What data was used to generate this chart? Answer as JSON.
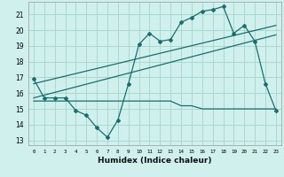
{
  "xlabel": "Humidex (Indice chaleur)",
  "bg_color": "#cff0ec",
  "grid_color": "#aad8d0",
  "line_color": "#1a6e6e",
  "x_ticks": [
    0,
    1,
    2,
    3,
    4,
    5,
    6,
    7,
    8,
    9,
    10,
    11,
    12,
    13,
    14,
    15,
    16,
    17,
    18,
    19,
    20,
    21,
    22,
    23
  ],
  "y_ticks": [
    13,
    14,
    15,
    16,
    17,
    18,
    19,
    20,
    21
  ],
  "xlim": [
    -0.5,
    23.5
  ],
  "ylim": [
    12.7,
    21.8
  ],
  "line1_x": [
    0,
    1,
    2,
    3,
    4,
    5,
    6,
    7,
    8,
    9,
    10,
    11,
    12,
    13,
    14,
    15,
    16,
    17,
    18,
    19,
    20,
    21,
    22,
    23
  ],
  "line1_y": [
    16.9,
    15.7,
    15.7,
    15.7,
    14.9,
    14.6,
    13.8,
    13.2,
    14.3,
    16.6,
    19.1,
    19.8,
    19.3,
    19.4,
    20.5,
    20.8,
    21.2,
    21.3,
    21.5,
    19.8,
    20.3,
    19.3,
    16.6,
    14.9
  ],
  "line2_x": [
    0,
    1,
    2,
    3,
    4,
    5,
    6,
    7,
    8,
    9,
    10,
    11,
    12,
    13,
    14,
    15,
    16,
    17,
    18,
    19,
    20,
    21,
    22,
    23
  ],
  "line2_y": [
    15.5,
    15.5,
    15.5,
    15.5,
    15.5,
    15.5,
    15.5,
    15.5,
    15.5,
    15.5,
    15.5,
    15.5,
    15.5,
    15.5,
    15.2,
    15.2,
    15.0,
    15.0,
    15.0,
    15.0,
    15.0,
    15.0,
    15.0,
    15.0
  ],
  "line3_x": [
    0,
    23
  ],
  "line3_y": [
    15.7,
    19.7
  ],
  "line4_x": [
    0,
    23
  ],
  "line4_y": [
    16.6,
    20.3
  ]
}
